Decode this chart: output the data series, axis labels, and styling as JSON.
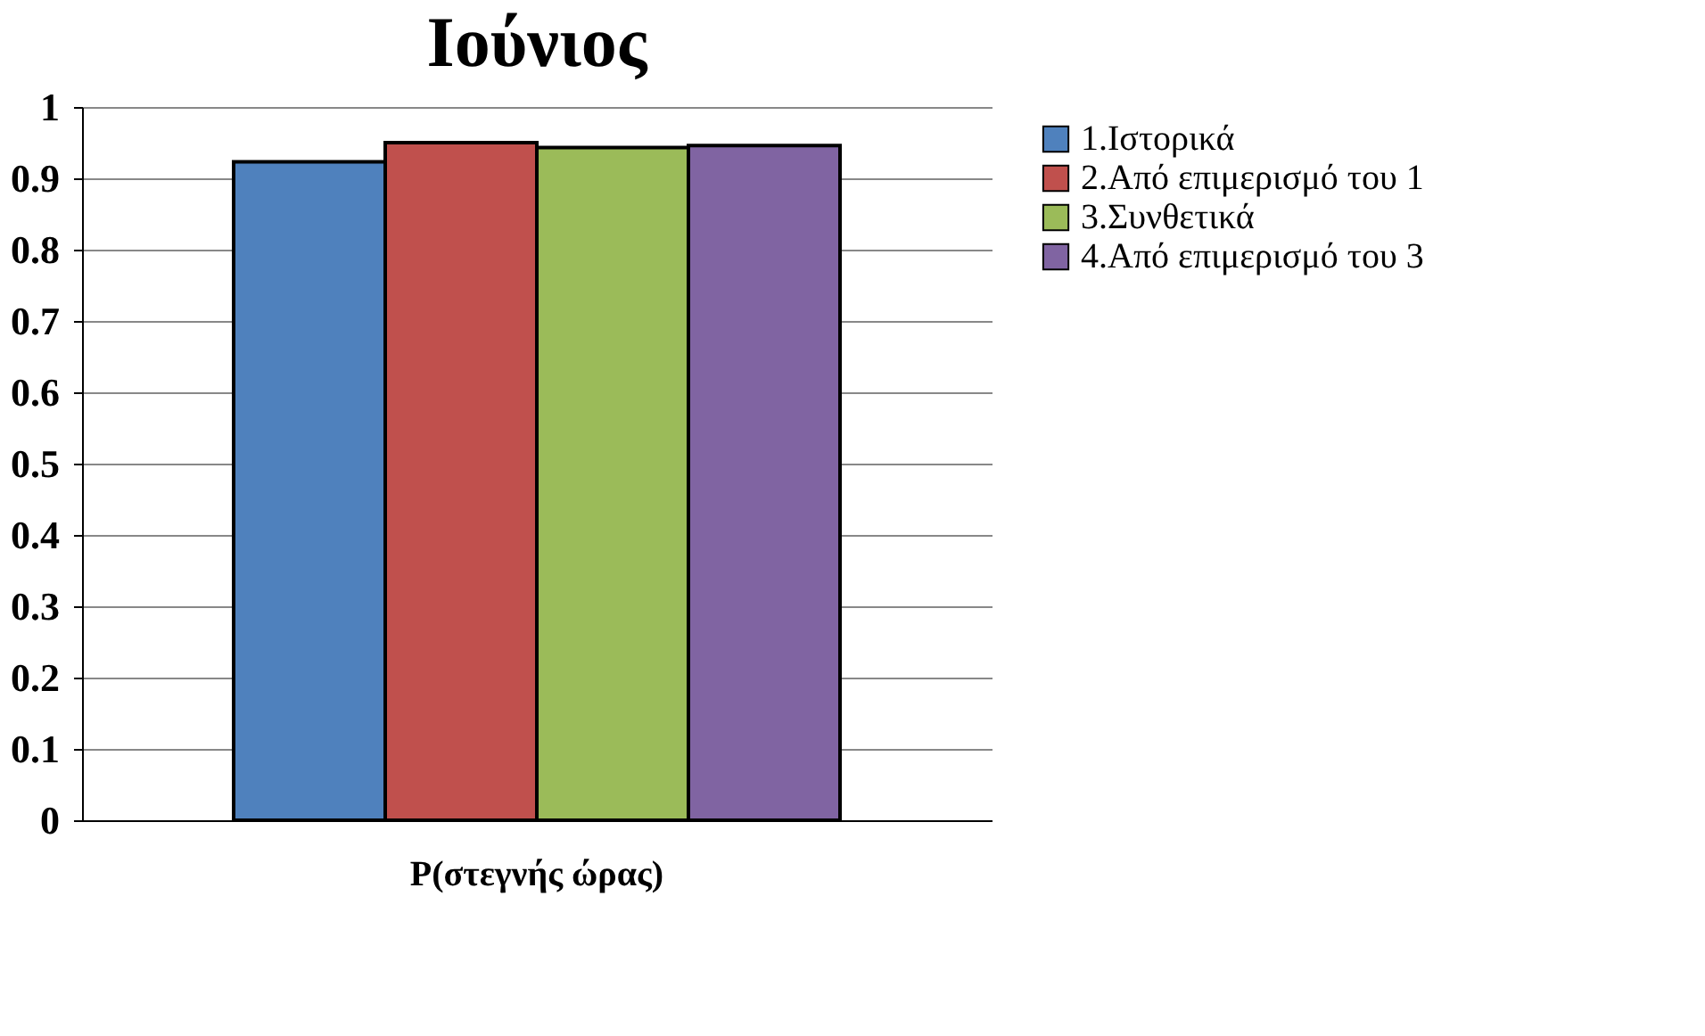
{
  "chart_data": {
    "type": "bar",
    "title": "Ιούνιος",
    "categories": [
      "P(στεγνής ώρας)"
    ],
    "series": [
      {
        "name": "1.Ιστορικά",
        "color": "#4f81bd",
        "values": [
          0.923
        ]
      },
      {
        "name": "2.Από επιμερισμό του 1",
        "color": "#c0504d",
        "values": [
          0.95
        ]
      },
      {
        "name": "3.Συνθετικά",
        "color": "#9bbb59",
        "values": [
          0.943
        ]
      },
      {
        "name": "4.Από επιμερισμό του 3",
        "color": "#8064a2",
        "values": [
          0.946
        ]
      }
    ],
    "ylim": [
      0,
      1
    ],
    "yticks": [
      0,
      0.1,
      0.2,
      0.3,
      0.4,
      0.5,
      0.6,
      0.7,
      0.8,
      0.9,
      1
    ],
    "grid": "y",
    "legend": "right"
  }
}
